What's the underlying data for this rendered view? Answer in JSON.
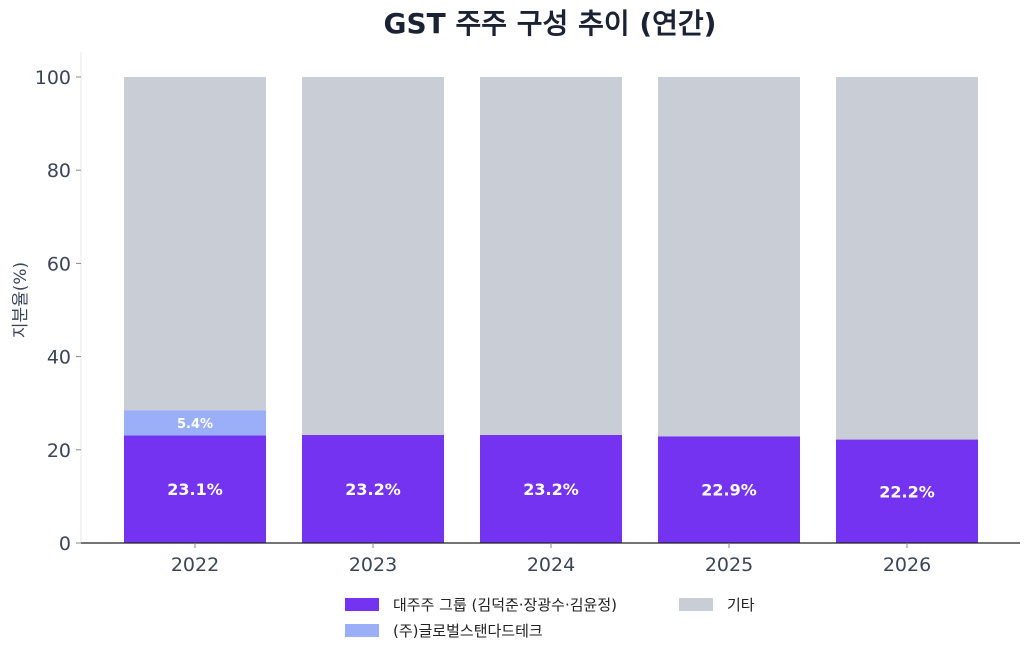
{
  "chart_data": {
    "type": "bar",
    "stacked": true,
    "title": "GST 주주 구성 추이 (연간)",
    "xlabel": "",
    "ylabel": "지분율(%)",
    "ylim": [
      0,
      100
    ],
    "yticks": [
      0,
      20,
      40,
      60,
      80,
      100
    ],
    "categories": [
      "2022",
      "2023",
      "2024",
      "2025",
      "2026"
    ],
    "series": [
      {
        "name": "대주주 그룹 (김덕준·장광수·김윤정)",
        "color": "#7433f0",
        "values": [
          23.1,
          23.2,
          23.2,
          22.9,
          22.2
        ],
        "labels": [
          "23.1%",
          "23.2%",
          "23.2%",
          "22.9%",
          "22.2%"
        ]
      },
      {
        "name": "(주)글로벌스탠다드테크",
        "color": "#9aaff8",
        "values": [
          5.4,
          0,
          0,
          0,
          0
        ],
        "labels": [
          "5.4%",
          "",
          "",
          "",
          ""
        ]
      },
      {
        "name": "기타",
        "color": "#c8cdd6",
        "values": [
          71.5,
          76.8,
          76.8,
          77.1,
          77.8
        ],
        "labels": [
          "",
          "",
          "",
          "",
          ""
        ]
      }
    ],
    "legend": {
      "placement": "bottom-center",
      "order": [
        "대주주 그룹 (김덕준·장광수·김윤정)",
        "기타",
        "(주)글로벌스탠다드테크"
      ]
    },
    "grid": false
  }
}
